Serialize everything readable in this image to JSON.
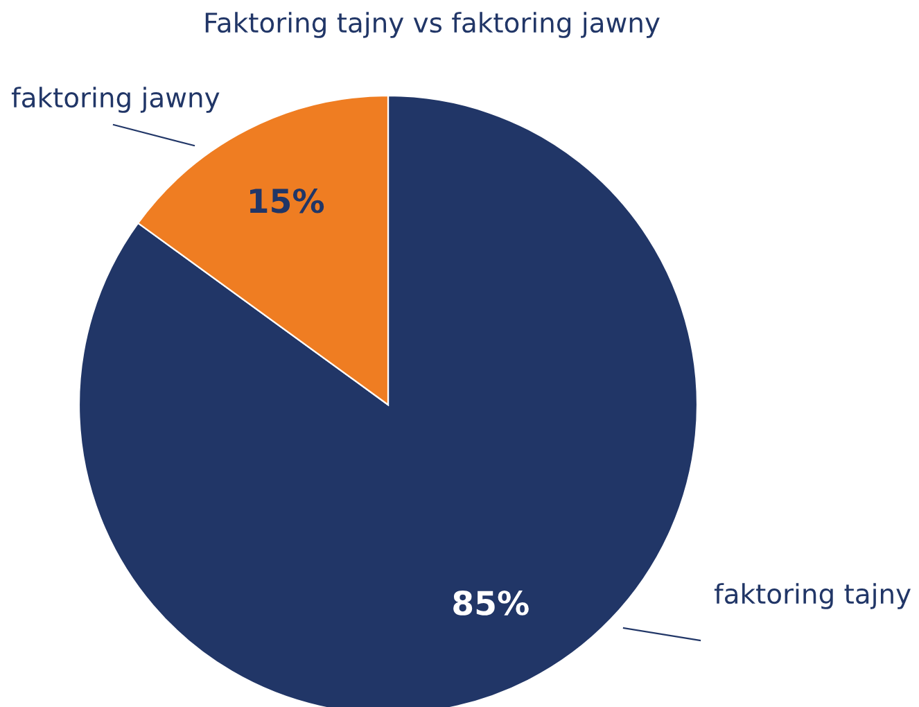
{
  "chart_data": {
    "type": "pie",
    "title": "Faktoring tajny vs faktoring jawny",
    "categories": [
      "faktoring tajny",
      "faktoring jawny"
    ],
    "values": [
      85,
      15
    ],
    "colors": [
      "#213667",
      "#ef7d22"
    ],
    "value_labels": [
      "85%",
      "15%"
    ]
  }
}
